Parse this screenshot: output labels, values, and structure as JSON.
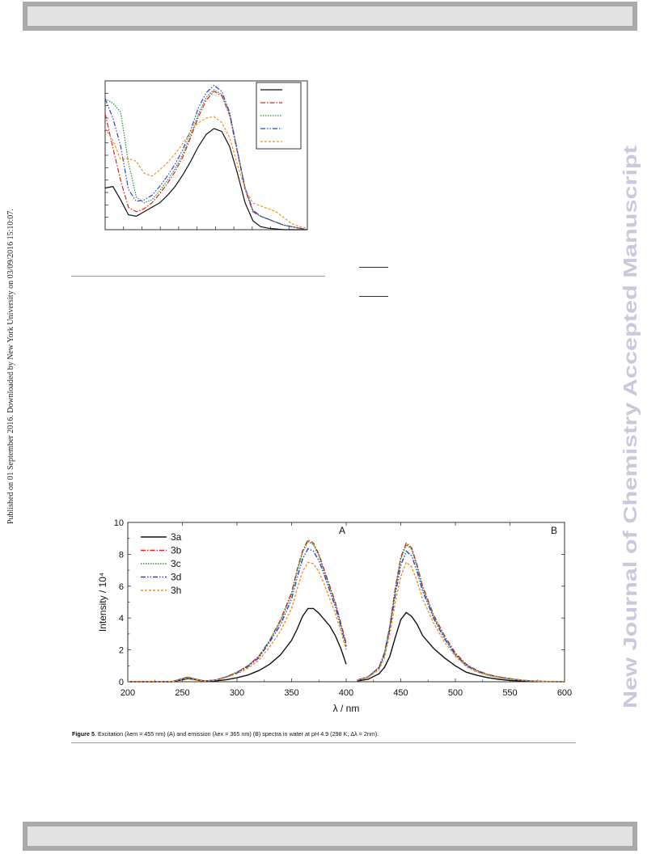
{
  "sidebar": {
    "download_note": "Published on 01 September 2016. Downloaded by New York University on 03/09/2016 15:10:07."
  },
  "watermark": {
    "text": "New Journal of Chemistry Accepted Manuscript"
  },
  "figure5": {
    "caption_label": "Figure 5",
    "caption_text": ". Excitation (λem = 455 nm) (A) and emission (λex = 365 nm) (B) spectra in water at pH 4.9 (298 K; Δλ = 2nm).",
    "panel_a_label": "A",
    "panel_b_label": "B",
    "colors": {
      "3a": "#111111",
      "3b": "#d4261c",
      "3c": "#2e8b3a",
      "3d": "#2b3fcf",
      "3h": "#f0901e"
    }
  },
  "chart_data": [
    {
      "type": "line",
      "title": "",
      "xlabel": "",
      "ylabel": "",
      "series": [
        {
          "color": "#111111",
          "x": [
            230,
            240,
            250,
            260,
            270,
            280,
            290,
            300,
            310,
            320,
            330,
            340,
            350,
            360,
            370,
            380,
            390,
            400,
            410,
            420,
            430,
            440,
            450,
            460,
            470,
            480,
            490
          ],
          "y": [
            0.28,
            0.29,
            0.2,
            0.1,
            0.09,
            0.12,
            0.15,
            0.18,
            0.23,
            0.29,
            0.37,
            0.46,
            0.56,
            0.64,
            0.68,
            0.66,
            0.56,
            0.38,
            0.18,
            0.06,
            0.02,
            0.01,
            0.005,
            0,
            0,
            0,
            0
          ]
        },
        {
          "color": "#d4261c",
          "x": [
            230,
            240,
            250,
            260,
            270,
            280,
            290,
            300,
            310,
            320,
            330,
            340,
            350,
            360,
            370,
            380,
            390,
            400,
            410,
            420,
            430,
            440,
            450,
            460,
            470,
            480,
            490
          ],
          "y": [
            0.78,
            0.55,
            0.33,
            0.15,
            0.12,
            0.14,
            0.18,
            0.24,
            0.31,
            0.39,
            0.49,
            0.62,
            0.76,
            0.87,
            0.93,
            0.9,
            0.77,
            0.52,
            0.27,
            0.12,
            0.09,
            0.07,
            0.05,
            0.03,
            0.02,
            0.01,
            0
          ]
        },
        {
          "color": "#2e8b3a",
          "x": [
            230,
            240,
            250,
            260,
            270,
            280,
            290,
            300,
            310,
            320,
            330,
            340,
            350,
            360,
            370,
            380,
            390,
            400,
            410,
            420,
            430,
            440,
            450,
            460,
            470,
            480,
            490
          ],
          "y": [
            0.88,
            0.85,
            0.79,
            0.45,
            0.22,
            0.18,
            0.2,
            0.26,
            0.33,
            0.41,
            0.51,
            0.64,
            0.78,
            0.89,
            0.94,
            0.91,
            0.78,
            0.53,
            0.28,
            0.13,
            0.09,
            0.07,
            0.05,
            0.03,
            0.02,
            0.01,
            0
          ]
        },
        {
          "color": "#2b3fcf",
          "x": [
            230,
            240,
            250,
            260,
            270,
            280,
            290,
            300,
            310,
            320,
            330,
            340,
            350,
            360,
            370,
            380,
            390,
            400,
            410,
            420,
            430,
            440,
            450,
            460,
            470,
            480,
            490
          ],
          "y": [
            0.88,
            0.75,
            0.56,
            0.27,
            0.19,
            0.2,
            0.23,
            0.29,
            0.36,
            0.44,
            0.54,
            0.67,
            0.82,
            0.92,
            0.97,
            0.93,
            0.79,
            0.53,
            0.28,
            0.13,
            0.09,
            0.07,
            0.05,
            0.03,
            0.02,
            0.01,
            0
          ]
        },
        {
          "color": "#f0901e",
          "x": [
            230,
            240,
            250,
            260,
            270,
            280,
            290,
            300,
            310,
            320,
            330,
            340,
            350,
            360,
            370,
            380,
            390,
            400,
            410,
            420,
            430,
            440,
            450,
            460,
            470,
            480,
            490
          ],
          "y": [
            0.68,
            0.6,
            0.47,
            0.48,
            0.46,
            0.38,
            0.36,
            0.4,
            0.45,
            0.51,
            0.58,
            0.66,
            0.72,
            0.75,
            0.76,
            0.72,
            0.62,
            0.44,
            0.27,
            0.18,
            0.16,
            0.14,
            0.12,
            0.08,
            0.04,
            0.02,
            0.01
          ]
        }
      ],
      "xlim": [
        230,
        490
      ],
      "ylim": [
        0,
        1
      ],
      "grid": false,
      "legend_placement": "top-right"
    },
    {
      "type": "line",
      "title": "",
      "xlabel": "λ / nm",
      "ylabel": "Intensity / 10⁴",
      "xticks": [
        200,
        250,
        300,
        350,
        400,
        450,
        500,
        550,
        600
      ],
      "yticks": [
        0,
        2,
        4,
        6,
        8,
        10
      ],
      "xlim": [
        200,
        600
      ],
      "ylim": [
        0,
        10
      ],
      "grid": false,
      "legend_placement": "top-left",
      "series": [
        {
          "name": "3a",
          "color": "#111111",
          "dash": "",
          "x": [
            200,
            240,
            250,
            255,
            260,
            270,
            280,
            290,
            300,
            310,
            320,
            330,
            340,
            350,
            355,
            360,
            365,
            370,
            375,
            380,
            385,
            390,
            395,
            400,
            400,
            410,
            420,
            430,
            435,
            440,
            445,
            450,
            455,
            460,
            465,
            470,
            480,
            490,
            500,
            510,
            520,
            530,
            540,
            550,
            560,
            570,
            580,
            600
          ],
          "y": [
            0,
            0,
            0.12,
            0.2,
            0.15,
            0.03,
            0.05,
            0.12,
            0.25,
            0.42,
            0.7,
            1.1,
            1.7,
            2.6,
            3.3,
            4.1,
            4.6,
            4.6,
            4.3,
            3.9,
            3.5,
            2.9,
            2.1,
            1.1,
            null,
            0.05,
            0.15,
            0.5,
            0.9,
            1.6,
            2.8,
            3.9,
            4.35,
            4.1,
            3.6,
            2.9,
            2.1,
            1.5,
            1.0,
            0.6,
            0.4,
            0.25,
            0.15,
            0.08,
            0.05,
            0.02,
            0.01,
            0
          ]
        },
        {
          "name": "3b",
          "color": "#d4261c",
          "dash": "6,2,1.5,2",
          "x": [
            200,
            240,
            250,
            255,
            260,
            270,
            280,
            290,
            300,
            310,
            320,
            330,
            340,
            350,
            355,
            360,
            365,
            370,
            375,
            380,
            385,
            390,
            395,
            400,
            400,
            410,
            420,
            430,
            435,
            440,
            445,
            450,
            455,
            460,
            465,
            470,
            480,
            490,
            500,
            510,
            520,
            530,
            540,
            550,
            560,
            570,
            580,
            600
          ],
          "y": [
            0,
            0,
            0.2,
            0.3,
            0.2,
            0.05,
            0.1,
            0.3,
            0.6,
            1.0,
            1.6,
            2.6,
            3.9,
            5.6,
            7.0,
            8.2,
            8.9,
            8.7,
            8.0,
            7.0,
            6.0,
            5.0,
            3.7,
            2.4,
            null,
            0.1,
            0.3,
            0.9,
            1.8,
            3.5,
            5.9,
            7.8,
            8.7,
            8.4,
            7.3,
            6.0,
            4.2,
            2.9,
            1.8,
            1.1,
            0.7,
            0.45,
            0.3,
            0.2,
            0.1,
            0.05,
            0.02,
            0
          ]
        },
        {
          "name": "3c",
          "color": "#2e8b3a",
          "dash": "1.5,1.5",
          "x": [
            200,
            240,
            250,
            255,
            260,
            270,
            280,
            290,
            300,
            310,
            320,
            330,
            340,
            350,
            355,
            360,
            365,
            370,
            375,
            380,
            385,
            390,
            395,
            400,
            400,
            410,
            420,
            430,
            435,
            440,
            445,
            450,
            455,
            460,
            465,
            470,
            480,
            490,
            500,
            510,
            520,
            530,
            540,
            550,
            560,
            570,
            580,
            600
          ],
          "y": [
            0,
            0,
            0.2,
            0.28,
            0.2,
            0.05,
            0.1,
            0.3,
            0.6,
            1.0,
            1.6,
            2.6,
            3.8,
            5.5,
            6.9,
            8.1,
            8.8,
            8.6,
            7.9,
            6.9,
            5.9,
            4.9,
            3.6,
            2.3,
            null,
            0.1,
            0.3,
            0.9,
            1.8,
            3.5,
            5.8,
            7.7,
            8.6,
            8.3,
            7.2,
            5.9,
            4.1,
            2.8,
            1.7,
            1.05,
            0.7,
            0.45,
            0.3,
            0.2,
            0.1,
            0.05,
            0.02,
            0
          ]
        },
        {
          "name": "3d",
          "color": "#2b3fcf",
          "dash": "6,2,1.5,2,1.5,2",
          "x": [
            200,
            240,
            250,
            255,
            260,
            270,
            280,
            290,
            300,
            310,
            320,
            330,
            340,
            350,
            355,
            360,
            365,
            370,
            375,
            380,
            385,
            390,
            395,
            400,
            400,
            410,
            420,
            430,
            435,
            440,
            445,
            450,
            455,
            460,
            465,
            470,
            480,
            490,
            500,
            510,
            520,
            530,
            540,
            550,
            560,
            570,
            580,
            600
          ],
          "y": [
            0,
            0,
            0.19,
            0.27,
            0.19,
            0.05,
            0.1,
            0.3,
            0.55,
            0.95,
            1.5,
            2.5,
            3.6,
            5.2,
            6.5,
            7.7,
            8.35,
            8.2,
            7.6,
            6.7,
            5.7,
            4.7,
            3.5,
            2.2,
            null,
            0.1,
            0.3,
            0.85,
            1.7,
            3.3,
            5.5,
            7.3,
            8.2,
            7.9,
            6.9,
            5.7,
            4.0,
            2.7,
            1.7,
            1.0,
            0.65,
            0.42,
            0.28,
            0.18,
            0.1,
            0.05,
            0.02,
            0
          ]
        },
        {
          "name": "3h",
          "color": "#f0901e",
          "dash": "3,2",
          "x": [
            200,
            240,
            250,
            255,
            260,
            270,
            280,
            290,
            300,
            310,
            320,
            330,
            340,
            350,
            355,
            360,
            365,
            370,
            375,
            380,
            385,
            390,
            395,
            400,
            400,
            410,
            420,
            430,
            435,
            440,
            445,
            450,
            455,
            460,
            465,
            470,
            480,
            490,
            500,
            510,
            520,
            530,
            540,
            550,
            560,
            570,
            580,
            600
          ],
          "y": [
            0,
            0,
            0.17,
            0.24,
            0.17,
            0.04,
            0.09,
            0.27,
            0.5,
            0.85,
            1.35,
            2.2,
            3.2,
            4.6,
            5.8,
            6.9,
            7.5,
            7.4,
            6.9,
            6.1,
            5.2,
            4.3,
            3.2,
            2.0,
            null,
            0.09,
            0.27,
            0.75,
            1.5,
            3.0,
            5.0,
            6.6,
            7.5,
            7.2,
            6.3,
            5.2,
            3.7,
            2.5,
            1.6,
            0.95,
            0.6,
            0.4,
            0.26,
            0.17,
            0.1,
            0.05,
            0.02,
            0
          ]
        }
      ]
    }
  ]
}
